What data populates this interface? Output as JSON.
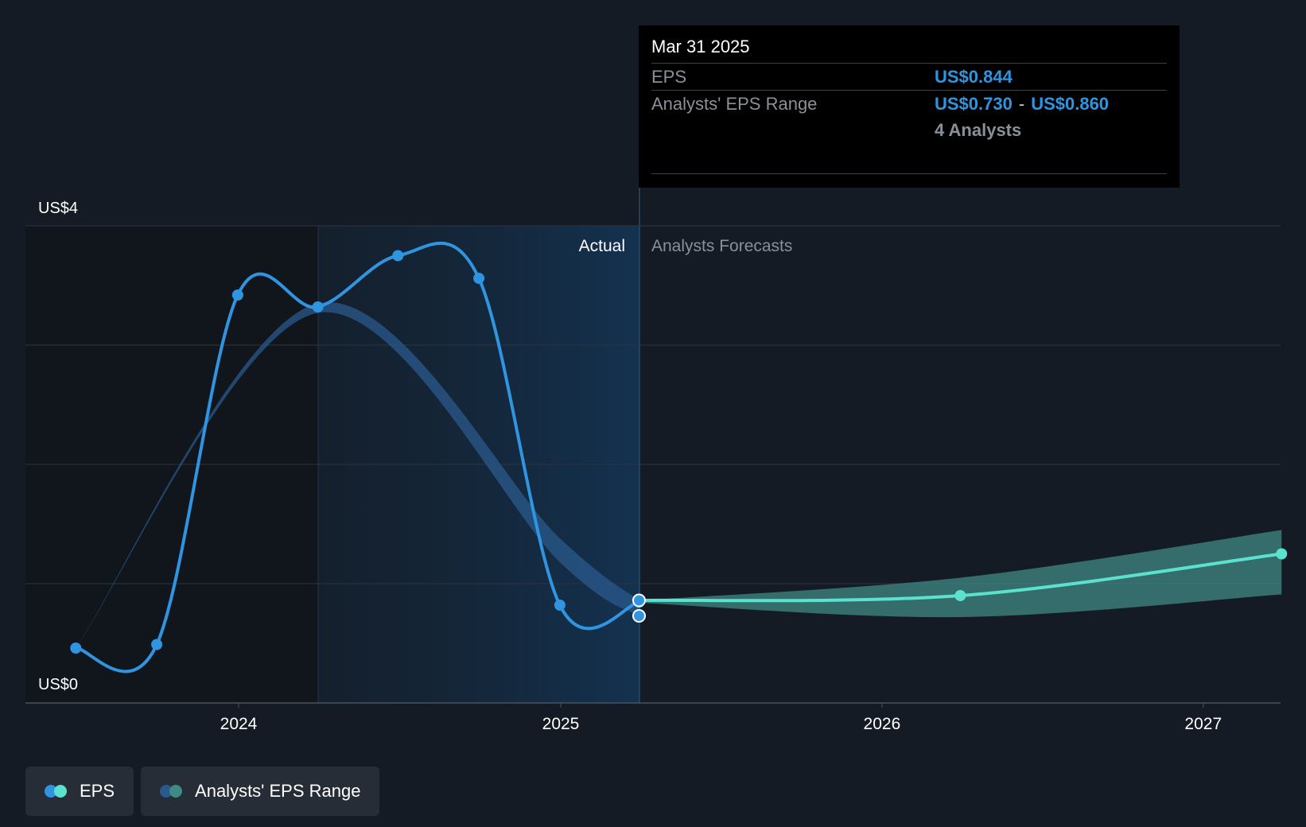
{
  "chart_data": {
    "type": "line",
    "y_axis": {
      "top_label": "US$4",
      "bottom_label": "US$0",
      "ylim": [
        0,
        4
      ]
    },
    "x_axis": {
      "ticks": [
        "2024",
        "2025",
        "2026",
        "2027"
      ]
    },
    "regions": {
      "actual_label": "Actual",
      "forecast_label": "Analysts Forecasts"
    },
    "series": [
      {
        "name": "EPS",
        "color": "#2f95e0",
        "points": [
          {
            "x": "2023-06-30",
            "y": 0.46
          },
          {
            "x": "2023-09-30",
            "y": 0.49
          },
          {
            "x": "2023-12-31",
            "y": 3.42
          },
          {
            "x": "2024-03-31",
            "y": 3.32
          },
          {
            "x": "2024-06-30",
            "y": 3.75
          },
          {
            "x": "2024-09-30",
            "y": 3.56
          },
          {
            "x": "2024-12-31",
            "y": 0.82
          },
          {
            "x": "2025-03-31",
            "y": 0.844
          }
        ]
      },
      {
        "name": "EPS",
        "color": "#5ce1cf",
        "points": [
          {
            "x": "2025-03-31",
            "y": 0.86
          },
          {
            "x": "2026-03-31",
            "y": 0.9
          },
          {
            "x": "2027-03-31",
            "y": 1.25
          }
        ]
      },
      {
        "name": "Analysts' EPS Range",
        "type": "band",
        "color": "#2a5a8c",
        "points": [
          {
            "x": "2023-06-30",
            "low": 0.46,
            "high": 0.46
          },
          {
            "x": "2024-03-31",
            "low": 3.27,
            "high": 3.35
          },
          {
            "x": "2024-12-31",
            "low": 1.18,
            "high": 1.38
          },
          {
            "x": "2025-03-31",
            "low": 0.73,
            "high": 0.86
          }
        ]
      },
      {
        "name": "Analysts' EPS Range",
        "type": "band",
        "color": "#3f8a84",
        "points": [
          {
            "x": "2025-03-31",
            "low": 0.84,
            "high": 0.86
          },
          {
            "x": "2026-03-31",
            "low": 0.72,
            "high": 1.05
          },
          {
            "x": "2027-03-31",
            "low": 0.91,
            "high": 1.45
          }
        ]
      }
    ]
  },
  "tooltip": {
    "date": "Mar 31 2025",
    "eps_label": "EPS",
    "eps_value": "US$0.844",
    "range_label": "Analysts' EPS Range",
    "range_low": "US$0.730",
    "range_sep": "-",
    "range_high": "US$0.860",
    "analysts": "4 Analysts"
  },
  "legend": {
    "eps_label": "EPS",
    "range_label": "Analysts' EPS Range",
    "eps_colors": [
      "#2f95e0",
      "#5ce1cf"
    ],
    "range_colors": [
      "#2a5a8c",
      "#3f8a84"
    ]
  }
}
